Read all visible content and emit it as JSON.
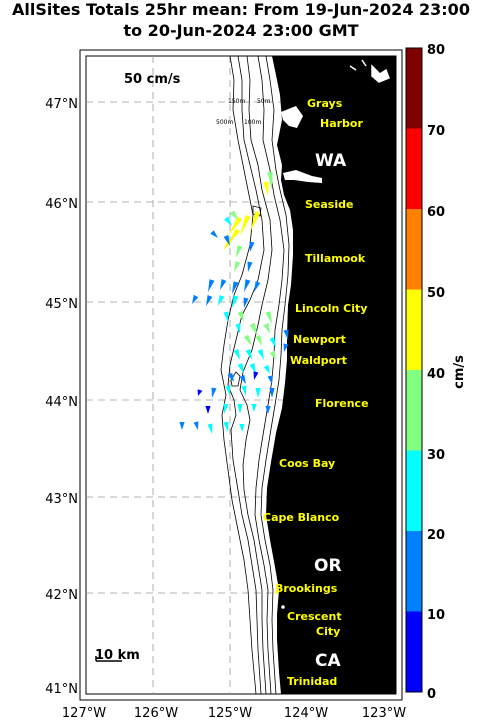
{
  "title": {
    "line1": "AllSites Totals 25hr mean: From 19-Jun-2024 23:00",
    "line2": "to 20-Jun-2024 23:00 GMT"
  },
  "axes": {
    "lat_labels": [
      "47°N",
      "46°N",
      "45°N",
      "44°N",
      "43°N",
      "42°N",
      "41°N"
    ],
    "lon_labels": [
      "127°W",
      "126°W",
      "125°W",
      "124°W",
      "123°W"
    ]
  },
  "scale": {
    "velocity_label": "50 cm/s",
    "distance_label": "10 km"
  },
  "contours": [
    "150m",
    "50m",
    "500m",
    "100m"
  ],
  "places": [
    {
      "name": "Grays"
    },
    {
      "name": "Harbor"
    },
    {
      "name": "Seaside"
    },
    {
      "name": "Tillamook"
    },
    {
      "name": "Lincoln City"
    },
    {
      "name": "Newport"
    },
    {
      "name": "Waldport"
    },
    {
      "name": "Florence"
    },
    {
      "name": "Coos Bay"
    },
    {
      "name": "Cape Blanco"
    },
    {
      "name": "Brookings"
    },
    {
      "name": "Crescent"
    },
    {
      "name": "City"
    },
    {
      "name": "Trinidad"
    }
  ],
  "states": {
    "wa": "WA",
    "or": "OR",
    "ca": "CA"
  },
  "colorbar": {
    "unit": "cm/s",
    "ticks": [
      "80",
      "70",
      "60",
      "50",
      "40",
      "30",
      "20",
      "10",
      "0"
    ],
    "colors": [
      "#7f0000",
      "#ff0000",
      "#ff8000",
      "#ffff00",
      "#80ff80",
      "#00ffff",
      "#0080ff",
      "#0000ff"
    ]
  }
}
